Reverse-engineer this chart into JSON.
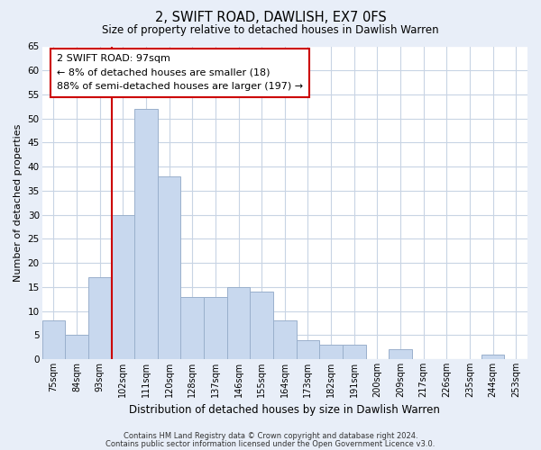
{
  "title": "2, SWIFT ROAD, DAWLISH, EX7 0FS",
  "subtitle": "Size of property relative to detached houses in Dawlish Warren",
  "xlabel": "Distribution of detached houses by size in Dawlish Warren",
  "ylabel": "Number of detached properties",
  "footer_line1": "Contains HM Land Registry data © Crown copyright and database right 2024.",
  "footer_line2": "Contains public sector information licensed under the Open Government Licence v3.0.",
  "bar_labels": [
    "75sqm",
    "84sqm",
    "93sqm",
    "102sqm",
    "111sqm",
    "120sqm",
    "128sqm",
    "137sqm",
    "146sqm",
    "155sqm",
    "164sqm",
    "173sqm",
    "182sqm",
    "191sqm",
    "200sqm",
    "209sqm",
    "217sqm",
    "226sqm",
    "235sqm",
    "244sqm",
    "253sqm"
  ],
  "bar_values": [
    8,
    5,
    17,
    30,
    52,
    38,
    13,
    13,
    15,
    14,
    8,
    4,
    3,
    3,
    0,
    2,
    0,
    0,
    0,
    1,
    0
  ],
  "bar_color": "#c8d8ee",
  "bar_edge_color": "#9ab0cc",
  "vline_color": "#cc0000",
  "ylim": [
    0,
    65
  ],
  "yticks": [
    0,
    5,
    10,
    15,
    20,
    25,
    30,
    35,
    40,
    45,
    50,
    55,
    60,
    65
  ],
  "annotation_title": "2 SWIFT ROAD: 97sqm",
  "annotation_line1": "← 8% of detached houses are smaller (18)",
  "annotation_line2": "88% of semi-detached houses are larger (197) →",
  "annotation_box_facecolor": "#ffffff",
  "annotation_box_edgecolor": "#cc0000",
  "fig_facecolor": "#e8eef8",
  "plot_facecolor": "#ffffff",
  "grid_color": "#c8d4e4"
}
